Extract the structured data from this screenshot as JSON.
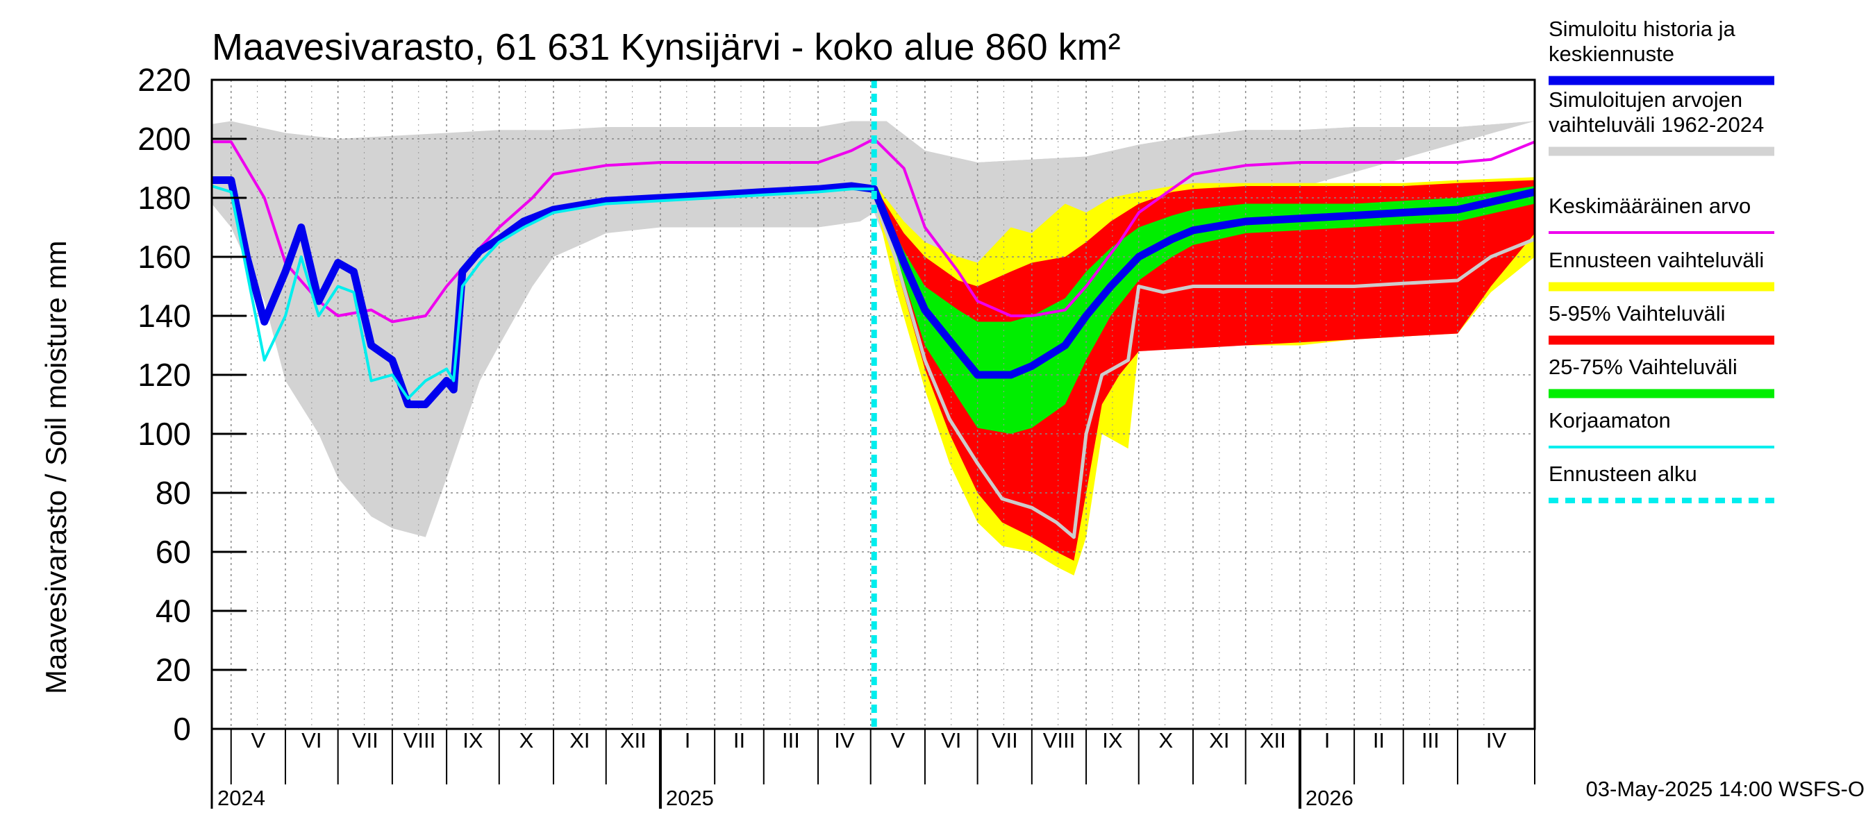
{
  "title": "Maavesivarasto, 61 631 Kynsijärvi - koko alue 860 km²",
  "footer": "03-May-2025 14:00 WSFS-O",
  "colors": {
    "history": "#d3d3d3",
    "yellow": "#ffff00",
    "red": "#ff0000",
    "green": "#00ee00",
    "blue": "#0000ee",
    "magenta": "#ee00ee",
    "cyan": "#00eeee",
    "grey_line": "#cccccc",
    "forecast_start": "#00eeee"
  },
  "legend": [
    {
      "label": "Simuloitu historia ja\nkeskiennuste",
      "color": "#0000ee",
      "style": "thick"
    },
    {
      "label": "Simuloitujen arvojen\nvaihteluväli 1962-2024",
      "color": "#d3d3d3",
      "style": "thick"
    },
    {
      "label": "Keskimääräinen arvo",
      "color": "#ee00ee",
      "style": "thin"
    },
    {
      "label": "Ennusteen vaihteluväli",
      "color": "#ffff00",
      "style": "thick"
    },
    {
      "label": "5-95% Vaihteluväli",
      "color": "#ff0000",
      "style": "thick"
    },
    {
      "label": "25-75% Vaihteluväli",
      "color": "#00ee00",
      "style": "thick"
    },
    {
      "label": "Korjaamaton",
      "color": "#00eeee",
      "style": "thin"
    },
    {
      "label": "Ennusteen alku",
      "color": "#00eeee",
      "style": "dashed"
    }
  ],
  "chart_data": {
    "type": "area",
    "title": "Maavesivarasto, 61 631 Kynsijärvi - koko alue 860 km²",
    "ylabel": "Maavesivarasto / Soil moisture   mm",
    "xlabel": "",
    "ylim": [
      0,
      220
    ],
    "yticks": [
      0,
      20,
      40,
      60,
      80,
      100,
      120,
      140,
      160,
      180,
      200,
      220
    ],
    "x_range": [
      "2024-04-20",
      "2026-05-15"
    ],
    "grid": true,
    "legend_position": "right",
    "forecast_start": "2025-05-03",
    "months": [
      {
        "label": "V",
        "start": "2024-05-01"
      },
      {
        "label": "VI",
        "start": "2024-06-01"
      },
      {
        "label": "VII",
        "start": "2024-07-01"
      },
      {
        "label": "VIII",
        "start": "2024-08-01"
      },
      {
        "label": "IX",
        "start": "2024-09-01"
      },
      {
        "label": "X",
        "start": "2024-10-01"
      },
      {
        "label": "XI",
        "start": "2024-11-01"
      },
      {
        "label": "XII",
        "start": "2024-12-01"
      },
      {
        "label": "I",
        "start": "2025-01-01"
      },
      {
        "label": "II",
        "start": "2025-02-01"
      },
      {
        "label": "III",
        "start": "2025-03-01"
      },
      {
        "label": "IV",
        "start": "2025-04-01"
      },
      {
        "label": "V",
        "start": "2025-05-01"
      },
      {
        "label": "VI",
        "start": "2025-06-01"
      },
      {
        "label": "VII",
        "start": "2025-07-01"
      },
      {
        "label": "VIII",
        "start": "2025-08-01"
      },
      {
        "label": "IX",
        "start": "2025-09-01"
      },
      {
        "label": "X",
        "start": "2025-10-01"
      },
      {
        "label": "XI",
        "start": "2025-11-01"
      },
      {
        "label": "XII",
        "start": "2025-12-01"
      },
      {
        "label": "I",
        "start": "2026-01-01"
      },
      {
        "label": "II",
        "start": "2026-02-01"
      },
      {
        "label": "III",
        "start": "2026-03-01"
      },
      {
        "label": "IV",
        "start": "2026-04-01"
      }
    ],
    "years": [
      {
        "label": "2024",
        "start": "2024-04-20"
      },
      {
        "label": "2025",
        "start": "2025-01-01"
      },
      {
        "label": "2026",
        "start": "2026-01-01"
      }
    ],
    "series": {
      "history_upper": {
        "x": [
          "2024-04-20",
          "2024-05-01",
          "2024-06-01",
          "2024-07-01",
          "2024-08-01",
          "2024-09-01",
          "2024-10-01",
          "2024-11-01",
          "2024-12-01",
          "2025-01-01",
          "2025-02-01",
          "2025-03-01",
          "2025-04-01",
          "2025-04-20",
          "2025-05-10",
          "2025-06-01",
          "2025-07-01",
          "2025-08-01",
          "2025-09-01",
          "2025-10-01",
          "2025-11-01",
          "2025-12-01",
          "2026-01-01",
          "2026-02-01",
          "2026-03-01",
          "2026-04-01",
          "2026-05-15"
        ],
        "y": [
          205,
          206,
          202,
          200,
          201,
          202,
          203,
          203,
          204,
          204,
          204,
          204,
          204,
          206,
          206,
          196,
          192,
          193,
          194,
          198,
          201,
          203,
          203,
          204,
          204,
          204,
          206
        ]
      },
      "history_lower": {
        "x": [
          "2024-04-20",
          "2024-05-01",
          "2024-05-20",
          "2024-06-01",
          "2024-06-20",
          "2024-07-01",
          "2024-07-20",
          "2024-08-01",
          "2024-08-20",
          "2024-09-01",
          "2024-09-20",
          "2024-10-01",
          "2024-10-20",
          "2024-11-01",
          "2024-11-20",
          "2024-12-01",
          "2025-01-01",
          "2025-02-01",
          "2025-03-01",
          "2025-04-01",
          "2025-04-25",
          "2025-05-03"
        ],
        "y": [
          178,
          170,
          145,
          118,
          100,
          85,
          72,
          68,
          65,
          85,
          118,
          130,
          150,
          160,
          165,
          168,
          170,
          170,
          170,
          170,
          172,
          175
        ]
      },
      "history_lower_forecast": {
        "x": [
          "2025-05-03",
          "2025-05-20",
          "2025-06-01",
          "2025-06-20",
          "2025-07-01",
          "2025-07-20",
          "2025-08-01",
          "2025-08-20",
          "2025-09-01",
          "2025-09-15",
          "2025-10-01"
        ],
        "y": [
          175,
          150,
          130,
          110,
          100,
          88,
          85,
          88,
          110,
          140,
          168
        ]
      },
      "yellow_upper": {
        "x": [
          "2025-05-03",
          "2025-05-20",
          "2025-06-01",
          "2025-06-20",
          "2025-07-01",
          "2025-07-20",
          "2025-08-01",
          "2025-08-20",
          "2025-09-01",
          "2025-09-15",
          "2025-10-01",
          "2025-10-20",
          "2025-11-01",
          "2025-12-01",
          "2026-01-01",
          "2026-02-01",
          "2026-03-01",
          "2026-04-01",
          "2026-05-15"
        ],
        "y": [
          185,
          172,
          165,
          160,
          158,
          170,
          168,
          178,
          175,
          180,
          182,
          184,
          185,
          185,
          185,
          185,
          185,
          186,
          187
        ]
      },
      "yellow_lower": {
        "x": [
          "2025-05-03",
          "2025-05-15",
          "2025-06-01",
          "2025-06-15",
          "2025-07-01",
          "2025-07-15",
          "2025-08-01",
          "2025-08-15",
          "2025-08-25",
          "2025-09-01",
          "2025-09-10",
          "2025-09-25",
          "2025-10-01",
          "2025-11-01",
          "2025-12-01",
          "2026-01-01",
          "2026-02-01",
          "2026-03-01",
          "2026-04-01",
          "2026-04-20",
          "2026-05-15"
        ],
        "y": [
          180,
          150,
          115,
          90,
          70,
          62,
          60,
          55,
          52,
          65,
          100,
          95,
          130,
          130,
          130,
          130,
          132,
          133,
          134,
          148,
          160
        ]
      },
      "red_upper": {
        "x": [
          "2025-05-03",
          "2025-05-20",
          "2025-06-01",
          "2025-06-20",
          "2025-07-01",
          "2025-07-20",
          "2025-08-01",
          "2025-08-20",
          "2025-09-01",
          "2025-09-15",
          "2025-10-01",
          "2025-10-20",
          "2025-11-01",
          "2025-12-01",
          "2026-01-01",
          "2026-02-01",
          "2026-03-01",
          "2026-04-01",
          "2026-05-15"
        ],
        "y": [
          184,
          168,
          160,
          152,
          150,
          155,
          158,
          160,
          165,
          172,
          178,
          182,
          183,
          184,
          184,
          184,
          184,
          185,
          186
        ]
      },
      "red_lower": {
        "x": [
          "2025-05-03",
          "2025-05-15",
          "2025-06-01",
          "2025-06-15",
          "2025-07-01",
          "2025-07-15",
          "2025-08-01",
          "2025-08-15",
          "2025-08-25",
          "2025-09-01",
          "2025-09-10",
          "2025-09-20",
          "2025-10-01",
          "2025-11-01",
          "2025-12-01",
          "2026-01-01",
          "2026-02-01",
          "2026-03-01",
          "2026-04-01",
          "2026-04-20",
          "2026-05-15"
        ],
        "y": [
          182,
          158,
          122,
          100,
          80,
          70,
          65,
          60,
          57,
          80,
          110,
          120,
          128,
          129,
          130,
          131,
          132,
          133,
          134,
          150,
          168
        ]
      },
      "green_upper": {
        "x": [
          "2025-05-03",
          "2025-05-20",
          "2025-06-01",
          "2025-06-20",
          "2025-07-01",
          "2025-07-20",
          "2025-08-01",
          "2025-08-20",
          "2025-09-01",
          "2025-09-15",
          "2025-10-01",
          "2025-10-20",
          "2025-11-01",
          "2025-12-01",
          "2026-01-01",
          "2026-02-01",
          "2026-03-01",
          "2026-04-01",
          "2026-05-15"
        ],
        "y": [
          183,
          162,
          150,
          142,
          138,
          138,
          140,
          146,
          155,
          163,
          170,
          174,
          176,
          178,
          178,
          178,
          179,
          180,
          184
        ]
      },
      "green_lower": {
        "x": [
          "2025-05-03",
          "2025-05-20",
          "2025-06-01",
          "2025-06-20",
          "2025-07-01",
          "2025-07-20",
          "2025-08-01",
          "2025-08-20",
          "2025-09-01",
          "2025-09-15",
          "2025-10-01",
          "2025-10-20",
          "2025-11-01",
          "2025-12-01",
          "2026-01-01",
          "2026-02-01",
          "2026-03-01",
          "2026-04-01",
          "2026-05-15"
        ],
        "y": [
          182,
          152,
          130,
          112,
          102,
          100,
          102,
          110,
          125,
          140,
          152,
          160,
          164,
          168,
          169,
          170,
          171,
          172,
          178
        ]
      },
      "blue": {
        "x": [
          "2024-04-20",
          "2024-05-01",
          "2024-05-10",
          "2024-05-20",
          "2024-06-01",
          "2024-06-10",
          "2024-06-20",
          "2024-07-01",
          "2024-07-10",
          "2024-07-20",
          "2024-08-01",
          "2024-08-10",
          "2024-08-20",
          "2024-09-01",
          "2024-09-05",
          "2024-09-10",
          "2024-09-20",
          "2024-10-01",
          "2024-10-15",
          "2024-11-01",
          "2024-12-01",
          "2025-01-01",
          "2025-02-01",
          "2025-03-01",
          "2025-04-01",
          "2025-04-20",
          "2025-05-03",
          "2025-05-20",
          "2025-06-01",
          "2025-06-20",
          "2025-07-01",
          "2025-07-20",
          "2025-08-01",
          "2025-08-20",
          "2025-09-01",
          "2025-09-15",
          "2025-10-01",
          "2025-10-20",
          "2025-11-01",
          "2025-12-01",
          "2026-01-01",
          "2026-02-01",
          "2026-03-01",
          "2026-04-01",
          "2026-05-15"
        ],
        "y": [
          186,
          186,
          160,
          138,
          155,
          170,
          145,
          158,
          155,
          130,
          125,
          110,
          110,
          118,
          115,
          155,
          162,
          166,
          172,
          176,
          179,
          180,
          181,
          182,
          183,
          184,
          183,
          158,
          142,
          128,
          120,
          120,
          123,
          130,
          140,
          150,
          160,
          166,
          169,
          172,
          173,
          174,
          175,
          176,
          182
        ]
      },
      "cyan": {
        "x": [
          "2024-04-20",
          "2024-05-01",
          "2024-05-10",
          "2024-05-20",
          "2024-06-01",
          "2024-06-10",
          "2024-06-20",
          "2024-07-01",
          "2024-07-10",
          "2024-07-20",
          "2024-08-01",
          "2024-08-10",
          "2024-08-20",
          "2024-09-01",
          "2024-09-05",
          "2024-09-10",
          "2024-09-20",
          "2024-10-01",
          "2024-10-15",
          "2024-11-01",
          "2024-12-01",
          "2025-01-01",
          "2025-02-01",
          "2025-03-01",
          "2025-04-01",
          "2025-04-20",
          "2025-05-03"
        ],
        "y": [
          184,
          182,
          155,
          125,
          140,
          160,
          140,
          150,
          148,
          118,
          120,
          112,
          118,
          122,
          118,
          150,
          158,
          165,
          170,
          175,
          178,
          179,
          180,
          181,
          182,
          183,
          183
        ]
      },
      "magenta": {
        "x": [
          "2024-04-20",
          "2024-05-01",
          "2024-05-20",
          "2024-06-01",
          "2024-06-20",
          "2024-07-01",
          "2024-07-20",
          "2024-08-01",
          "2024-08-20",
          "2024-09-01",
          "2024-09-20",
          "2024-10-01",
          "2024-10-20",
          "2024-11-01",
          "2024-12-01",
          "2025-01-01",
          "2025-02-01",
          "2025-03-01",
          "2025-04-01",
          "2025-04-20",
          "2025-05-03",
          "2025-05-20",
          "2025-06-01",
          "2025-06-20",
          "2025-07-01",
          "2025-07-20",
          "2025-08-01",
          "2025-08-20",
          "2025-09-01",
          "2025-09-20",
          "2025-10-01",
          "2025-10-20",
          "2025-11-01",
          "2025-12-01",
          "2026-01-01",
          "2026-02-01",
          "2026-03-01",
          "2026-04-01",
          "2026-04-20",
          "2026-05-15"
        ],
        "y": [
          199,
          199,
          180,
          158,
          145,
          140,
          142,
          138,
          140,
          150,
          163,
          170,
          180,
          188,
          191,
          192,
          192,
          192,
          192,
          196,
          200,
          190,
          170,
          155,
          145,
          140,
          140,
          142,
          150,
          165,
          175,
          183,
          188,
          191,
          192,
          192,
          192,
          192,
          193,
          199
        ]
      },
      "grey_line": {
        "x": [
          "2025-05-03",
          "2025-05-15",
          "2025-06-01",
          "2025-06-15",
          "2025-07-01",
          "2025-07-15",
          "2025-08-01",
          "2025-08-15",
          "2025-08-25",
          "2025-09-01",
          "2025-09-10",
          "2025-09-25",
          "2025-10-01",
          "2025-10-15",
          "2025-11-01",
          "2025-12-01",
          "2026-01-01",
          "2026-02-01",
          "2026-03-01",
          "2026-04-01",
          "2026-04-20",
          "2026-05-15"
        ],
        "y": [
          180,
          160,
          125,
          105,
          90,
          78,
          75,
          70,
          65,
          100,
          120,
          125,
          150,
          148,
          150,
          150,
          150,
          150,
          151,
          152,
          160,
          166
        ]
      }
    }
  }
}
